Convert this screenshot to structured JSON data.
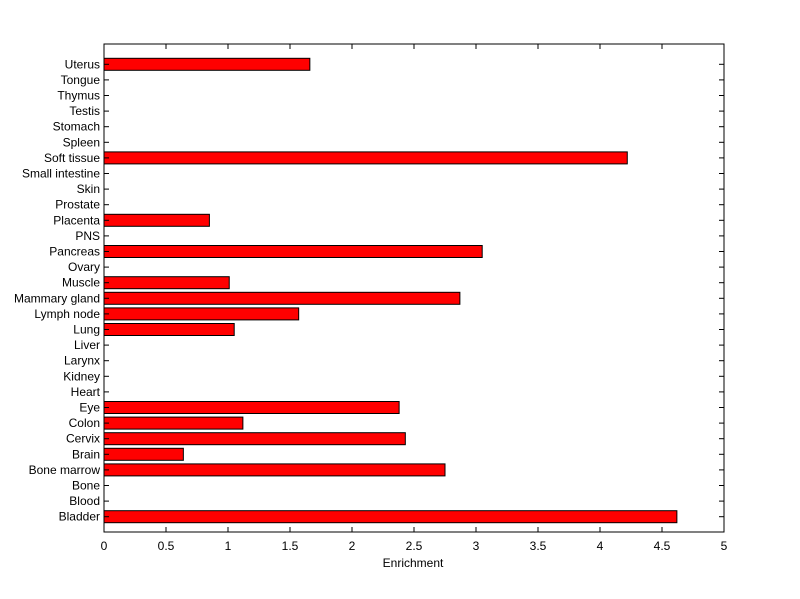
{
  "chart_data": {
    "type": "bar",
    "orientation": "horizontal",
    "xlabel": "Enrichment",
    "ylabel": "",
    "title": "",
    "xlim": [
      0,
      5
    ],
    "xticks": [
      0,
      0.5,
      1,
      1.5,
      2,
      2.5,
      3,
      3.5,
      4,
      4.5,
      5
    ],
    "xtick_labels": [
      "0",
      "0.5",
      "1",
      "1.5",
      "2",
      "2.5",
      "3",
      "3.5",
      "4",
      "4.5",
      "5"
    ],
    "grid": false,
    "legend": "none",
    "bar_color": "#ff0000",
    "bar_edge_color": "#000000",
    "categories": [
      "Bladder",
      "Blood",
      "Bone",
      "Bone marrow",
      "Brain",
      "Cervix",
      "Colon",
      "Eye",
      "Heart",
      "Kidney",
      "Larynx",
      "Liver",
      "Lung",
      "Lymph node",
      "Mammary gland",
      "Muscle",
      "Ovary",
      "Pancreas",
      "PNS",
      "Placenta",
      "Prostate",
      "Skin",
      "Small intestine",
      "Soft tissue",
      "Spleen",
      "Stomach",
      "Testis",
      "Thymus",
      "Tongue",
      "Uterus"
    ],
    "values": [
      4.62,
      0,
      0,
      2.75,
      0.64,
      2.43,
      1.12,
      2.38,
      0,
      0,
      0,
      0,
      1.05,
      1.57,
      2.87,
      1.01,
      0,
      3.05,
      0,
      0.85,
      0,
      0,
      0,
      4.22,
      0,
      0,
      0,
      0,
      0,
      1.66
    ]
  }
}
